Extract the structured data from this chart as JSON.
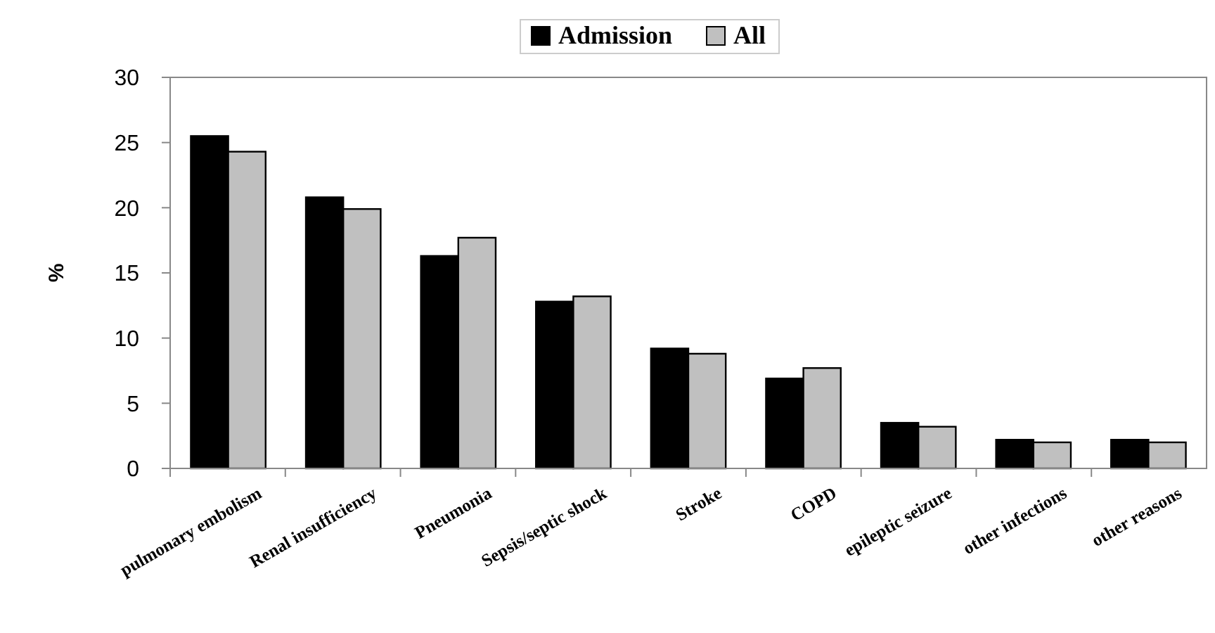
{
  "chart_data": {
    "type": "bar",
    "ylabel": "%",
    "categories": [
      "pulmonary embolism",
      "Renal insufficiency",
      "Pneumonia",
      "Sepsis/septic shock",
      "Stroke",
      "COPD",
      "epileptic seizure",
      "other infections",
      "other reasons"
    ],
    "series": [
      {
        "name": "Admission",
        "color": "#000000",
        "values": [
          25.5,
          20.8,
          16.3,
          12.8,
          9.2,
          6.9,
          3.5,
          2.2,
          2.2
        ]
      },
      {
        "name": "All",
        "color": "#c0c0c0",
        "values": [
          24.3,
          19.9,
          17.7,
          13.2,
          8.8,
          7.7,
          3.2,
          2.0,
          2.0
        ]
      }
    ],
    "ylim": [
      0,
      30
    ],
    "yticks": [
      0,
      5,
      10,
      15,
      20,
      25,
      30
    ],
    "legend": "top right",
    "grid": false
  }
}
